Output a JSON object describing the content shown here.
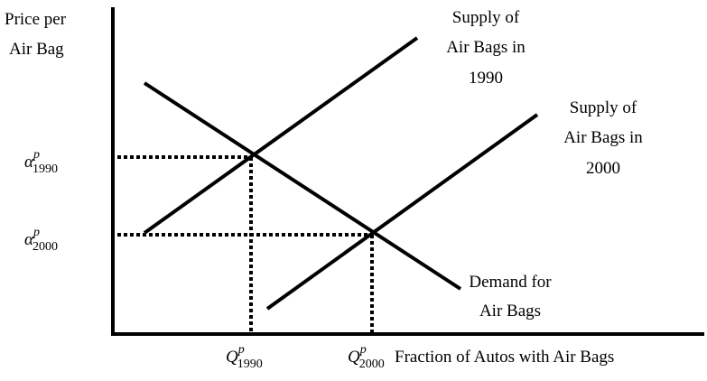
{
  "y_axis_label": [
    "Price per",
    "Air Bag"
  ],
  "x_axis_label": "Fraction of Autos with Air Bags",
  "supply_1990_label": [
    "Supply of",
    "Air Bags in",
    "1990"
  ],
  "supply_2000_label": [
    "Supply of",
    "Air Bags in",
    "2000"
  ],
  "demand_label": [
    "Demand for",
    "Air Bags"
  ],
  "price_1990": {
    "base": "α",
    "sup": "p",
    "sub": "1990"
  },
  "price_2000": {
    "base": "α",
    "sup": "p",
    "sub": "2000"
  },
  "quantity_1990": {
    "base": "Q",
    "sup": "p",
    "sub": "1990"
  },
  "quantity_2000": {
    "base": "Q",
    "sup": "p",
    "sub": "2000"
  }
}
